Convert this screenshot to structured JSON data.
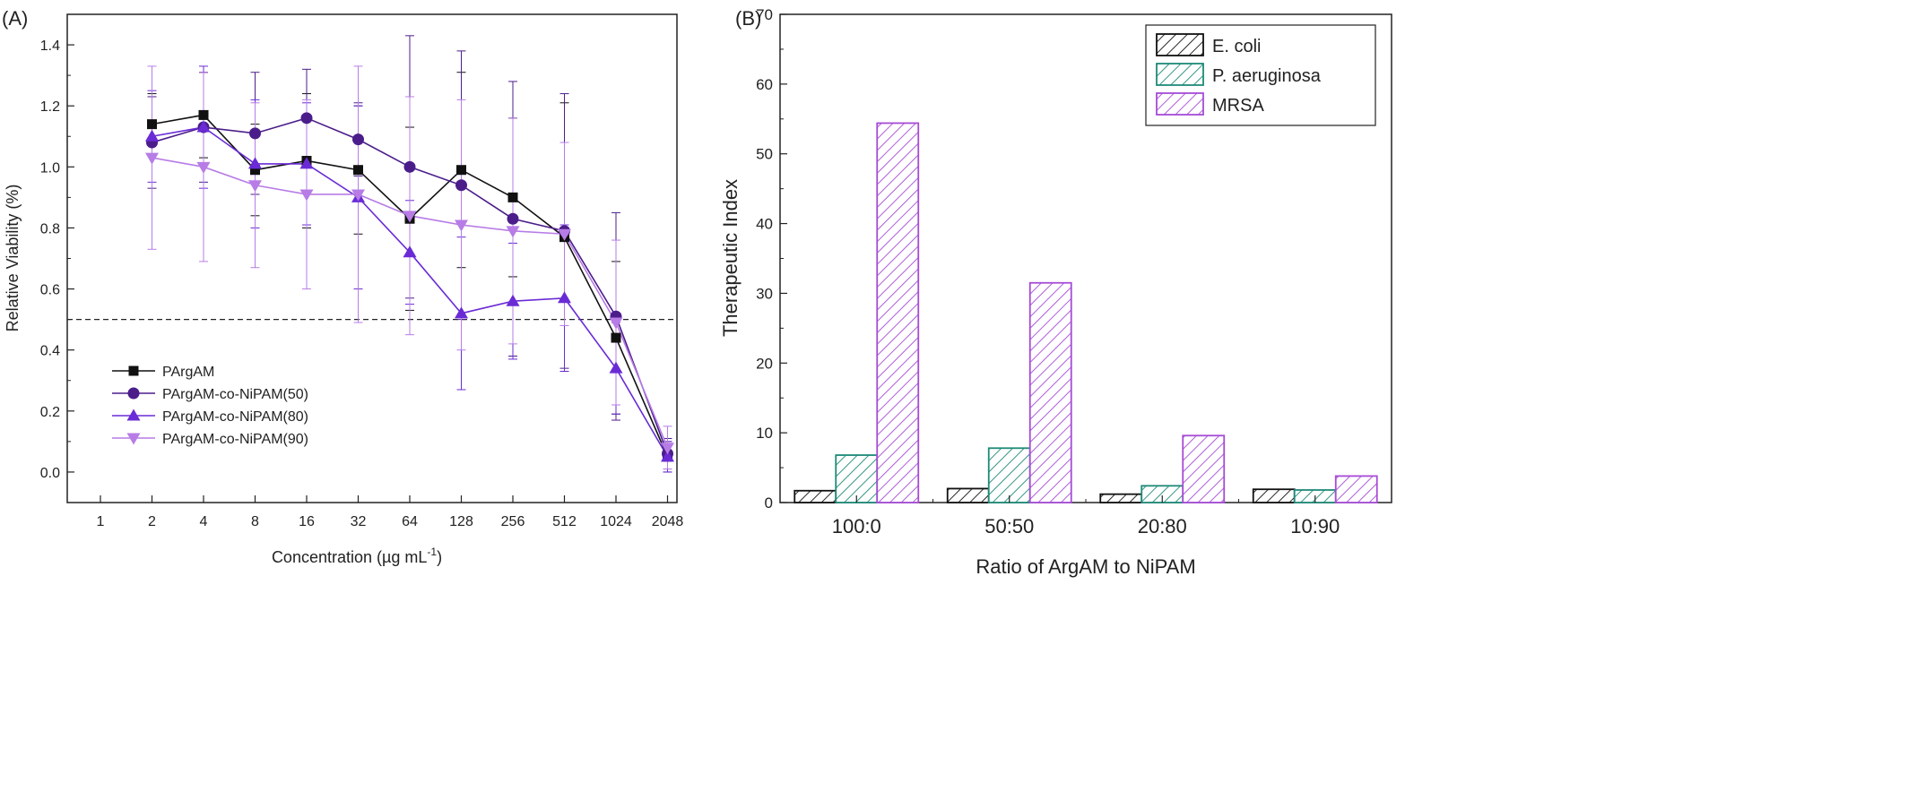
{
  "chart_data": [
    {
      "panel_label": "(A)",
      "type": "line",
      "xlabel": "Concentration (µg mL",
      "xlabel_sup": "-1",
      "xlabel_close": ")",
      "ylabel": "Relative Viability (%)",
      "x_scale": "log2",
      "x_ticks": [
        "1",
        "2",
        "4",
        "8",
        "16",
        "32",
        "64",
        "128",
        "256",
        "512",
        "1024",
        "2048"
      ],
      "ylim": [
        -0.1,
        1.5
      ],
      "y_ticks": [
        "0.0",
        "0.2",
        "0.4",
        "0.6",
        "0.8",
        "1.0",
        "1.2",
        "1.4"
      ],
      "reference_line": {
        "y": 0.5,
        "style": "dashed"
      },
      "legend_position": "bottom-left",
      "x": [
        2,
        4,
        8,
        16,
        32,
        64,
        128,
        256,
        512,
        1024,
        2048
      ],
      "series": [
        {
          "name": "PArgAM",
          "marker": "square",
          "color": "#111111",
          "values": [
            1.14,
            1.17,
            0.99,
            1.02,
            0.99,
            0.83,
            0.99,
            0.9,
            0.77,
            0.44,
            0.05
          ],
          "err": [
            0.1,
            0.14,
            0.15,
            0.22,
            0.21,
            0.3,
            0.32,
            0.26,
            0.44,
            0.25,
            0.05
          ]
        },
        {
          "name": "PArgAM-co-NiPAM(50)",
          "marker": "circle",
          "color": "#4b1d8a",
          "values": [
            1.08,
            1.13,
            1.11,
            1.16,
            1.09,
            1.0,
            0.94,
            0.83,
            0.79,
            0.51,
            0.06
          ],
          "err": [
            0.15,
            0.18,
            0.2,
            0.16,
            0.12,
            0.43,
            0.44,
            0.45,
            0.45,
            0.34,
            0.05
          ]
        },
        {
          "name": "PArgAM-co-NiPAM(80)",
          "marker": "triangle-up",
          "color": "#6a2bd6",
          "values": [
            1.1,
            1.13,
            1.01,
            1.01,
            0.9,
            0.72,
            0.52,
            0.56,
            0.57,
            0.34,
            0.05
          ],
          "err": [
            0.15,
            0.2,
            0.21,
            0.2,
            0.3,
            0.17,
            0.25,
            0.19,
            0.24,
            0.15,
            0.05
          ]
        },
        {
          "name": "PArgAM-co-NiPAM(90)",
          "marker": "triangle-down",
          "color": "#b77ce6",
          "values": [
            1.03,
            1.0,
            0.94,
            0.91,
            0.91,
            0.84,
            0.81,
            0.79,
            0.78,
            0.49,
            0.08
          ],
          "err": [
            0.3,
            0.31,
            0.27,
            0.31,
            0.42,
            0.39,
            0.41,
            0.37,
            0.3,
            0.27,
            0.07
          ]
        }
      ]
    },
    {
      "panel_label": "(B)",
      "type": "bar",
      "xlabel": "Ratio of ArgAM to NiPAM",
      "ylabel": "Therapeutic Index",
      "ylim": [
        0,
        70
      ],
      "y_ticks": [
        "0",
        "10",
        "20",
        "30",
        "40",
        "50",
        "60",
        "70"
      ],
      "bar_fill": "diagonal-hatch",
      "legend_position": "top-right",
      "categories": [
        "100:0",
        "50:50",
        "20:80",
        "10:90"
      ],
      "series": [
        {
          "name": "E. coli",
          "color": "#111111",
          "values": [
            1.7,
            2.0,
            1.2,
            1.9
          ]
        },
        {
          "name": "P. aeruginosa",
          "color": "#1e8a78",
          "values": [
            6.8,
            7.8,
            2.4,
            1.8
          ]
        },
        {
          "name": "MRSA",
          "color": "#a64bd6",
          "values": [
            54.4,
            31.5,
            9.6,
            3.8
          ]
        }
      ]
    }
  ]
}
